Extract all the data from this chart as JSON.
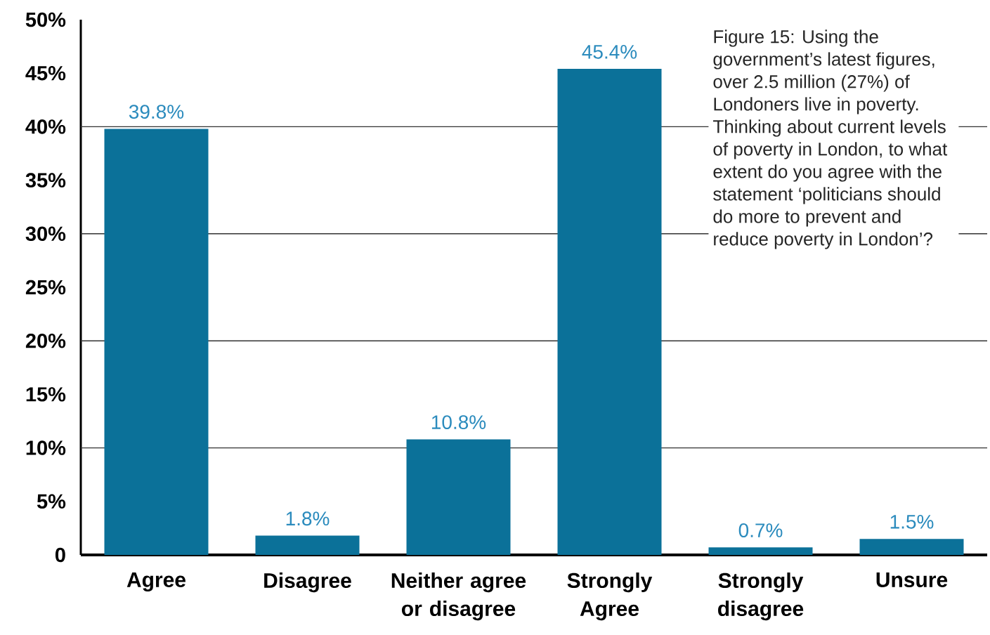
{
  "chart_data": {
    "type": "bar",
    "categories": [
      "Agree",
      "Disagree",
      "Neither agree or disagree",
      "Strongly Agree",
      "Strongly disagree",
      "Unsure"
    ],
    "values": [
      39.8,
      1.8,
      10.8,
      45.4,
      0.7,
      1.5
    ],
    "value_labels": [
      "39.8%",
      "1.8%",
      "10.8%",
      "45.4%",
      "0.7%",
      "1.5%"
    ],
    "color": "#0b7199",
    "ylim": [
      0,
      50
    ],
    "yticks": [
      0,
      {
        "value": 5,
        "label": "5%"
      },
      {
        "value": 10,
        "label": "10%"
      },
      {
        "value": 15,
        "label": "15%"
      },
      {
        "value": 20,
        "label": "20%"
      },
      {
        "value": 25,
        "label": "25%"
      },
      {
        "value": 30,
        "label": "30%"
      },
      {
        "value": 35,
        "label": "35%"
      },
      {
        "value": 40,
        "label": "40%"
      },
      {
        "value": 45,
        "label": "45%"
      },
      {
        "value": 50,
        "label": "50%"
      }
    ],
    "ref_lines": [
      {
        "axis": "y",
        "value": 10,
        "color": "#333333"
      },
      {
        "axis": "y",
        "value": 20,
        "color": "#333333"
      },
      {
        "axis": "y",
        "value": 30,
        "color": "#333333"
      },
      {
        "axis": "y",
        "value": 40,
        "color": "#333333"
      }
    ],
    "annotations": [
      "Figure 15: Using the government’s latest figures, over 2.5 million (27%) of Londoners live in poverty. Thinking about current levels of poverty in London, to what extent do you agree with the statement ‘politicians should do more to prevent and reduce poverty in London’?"
    ]
  }
}
